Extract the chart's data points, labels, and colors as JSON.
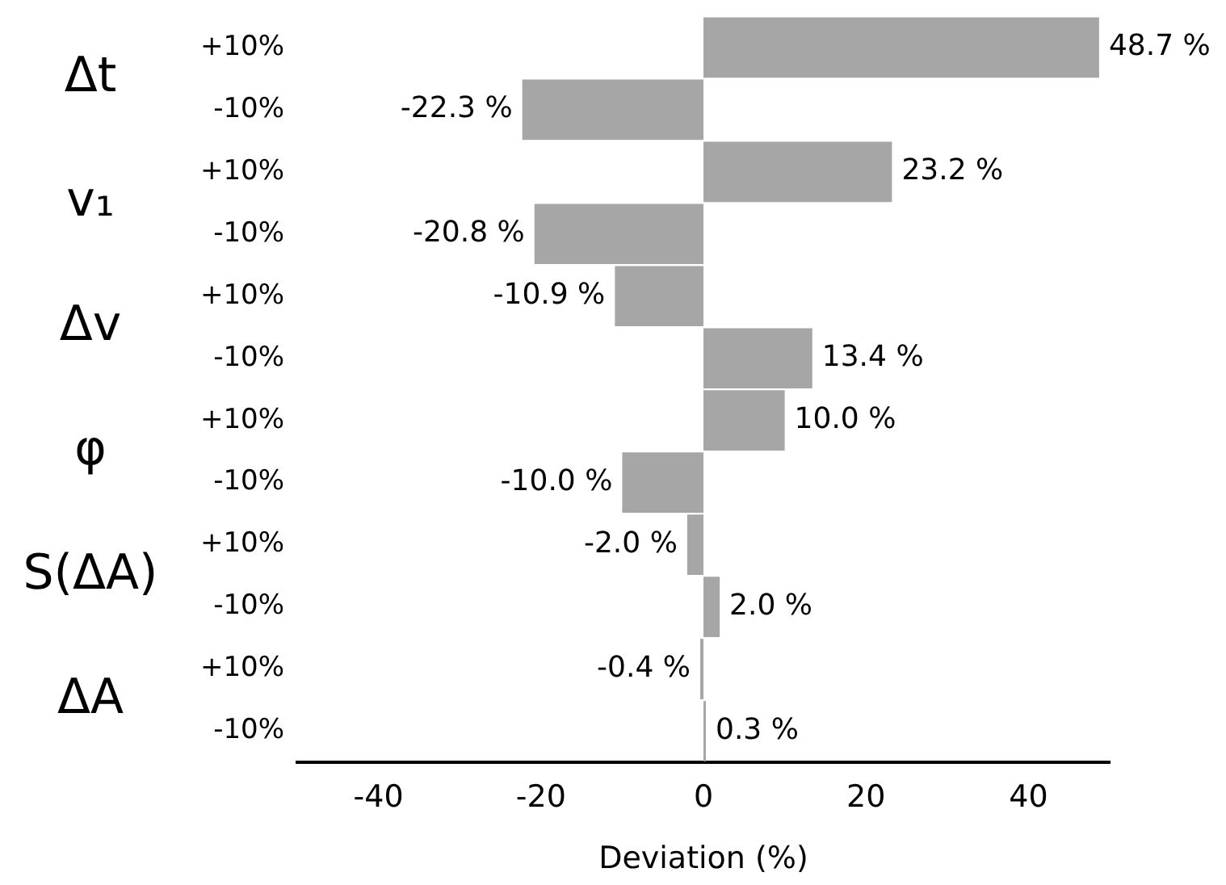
{
  "chart_data": {
    "type": "bar",
    "orientation": "horizontal",
    "categories": [
      "+10%",
      "-10%",
      "+10%",
      "-10%",
      "+10%",
      "-10%",
      "+10%",
      "-10%",
      "+10%",
      "-10%",
      "+10%",
      "-10%"
    ],
    "values": [
      48.7,
      -22.3,
      23.2,
      -20.8,
      -10.9,
      13.4,
      10.0,
      -10.0,
      -2.0,
      2.0,
      -0.4,
      0.3
    ],
    "value_labels": [
      "48.7 %",
      "-22.3 %",
      "23.2 %",
      "-20.8 %",
      "-10.9 %",
      "13.4 %",
      "10.0 %",
      "-10.0 %",
      "-2.0 %",
      "2.0 %",
      "-0.4 %",
      "0.3 %"
    ],
    "color": "#a6a6a6",
    "annotations": [
      "Δt",
      "v₁",
      "Δv",
      "φ",
      "S(ΔA)",
      "ΔA"
    ],
    "xlabel": "Deviation (%)",
    "xlim": [
      -50,
      50
    ],
    "xticks": [
      -40,
      -20,
      0,
      20,
      40
    ],
    "grid": false,
    "legend": false
  }
}
